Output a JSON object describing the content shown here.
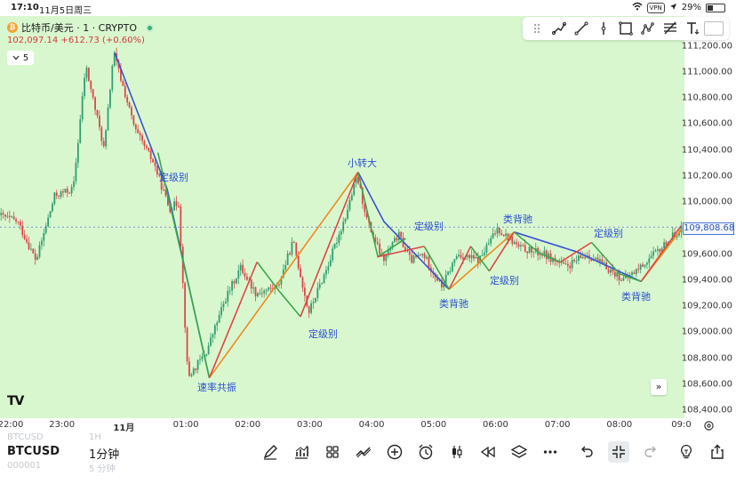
{
  "status_bar": {
    "time": "17:10",
    "date": "11月5日周三",
    "vpn": "VPN",
    "battery": "29%"
  },
  "symbol": {
    "coin_letter": "₿",
    "title": "比特币/美元 · 1 · CRYPTO",
    "price_line": "102,097.14 +612.73 (+0.60%)",
    "interval_count": "5"
  },
  "current_price": "109,808.68",
  "annotations": {
    "a1": "定级别",
    "a2": "速率共振",
    "a3": "定级别",
    "a4": "小转大",
    "a5": "定级别",
    "a6": "类背驰",
    "a7": "类背驰",
    "a8": "定级别",
    "a9": "定级别",
    "a10": "类背驰"
  },
  "time_axis": [
    "22:00",
    "23:00",
    "11月",
    "01:00",
    "02:00",
    "03:00",
    "04:00",
    "05:00",
    "06:00",
    "07:00",
    "08:00",
    "09:0"
  ],
  "tv_logo": "TV",
  "bottom": {
    "ghost_symbol": "BTCUSD",
    "ghost_interval": "1H",
    "ghost_code": "000001",
    "ghost_interval2": "5 分钟",
    "symbol": "BTCUSD",
    "interval": "1分钟"
  },
  "colors": {
    "chart_bg": "#d9f7cf",
    "up": "#2f9e6e",
    "down": "#e0454a",
    "blue_line": "#3a54cf",
    "green_line": "#3aa84a",
    "red_line": "#e04545",
    "orange_line": "#f08a1c"
  },
  "chart_data": {
    "type": "candlestick",
    "title": "比特币/美元 · 1 · CRYPTO",
    "xlabel": "",
    "ylabel": "",
    "x_ticks": [
      "22:00",
      "23:00",
      "11月",
      "01:00",
      "02:00",
      "03:00",
      "04:00",
      "05:00",
      "06:00",
      "07:00",
      "08:00",
      "09:0"
    ],
    "y_ticks": [
      {
        "value": 111200,
        "label": "111,200.00"
      },
      {
        "value": 111000,
        "label": "111,000.00"
      },
      {
        "value": 110800,
        "label": "110,800.00"
      },
      {
        "value": 110600,
        "label": "110,600.00"
      },
      {
        "value": 110400,
        "label": "110,400.00"
      },
      {
        "value": 110200,
        "label": "110,200.00"
      },
      {
        "value": 110000,
        "label": "110,000.00"
      },
      {
        "value": 109800,
        "label": "109,800.00"
      },
      {
        "value": 109600,
        "label": "109,600.00"
      },
      {
        "value": 109400,
        "label": "109,400.00"
      },
      {
        "value": 109200,
        "label": "109,200.00"
      },
      {
        "value": 109000,
        "label": "109,000.00"
      },
      {
        "value": 108800,
        "label": "108,800.00"
      },
      {
        "value": 108600,
        "label": "108,600.00"
      },
      {
        "value": 108400,
        "label": "108,400.00"
      }
    ],
    "ylim": [
      108340,
      111430
    ],
    "time_range_hours": [
      -2.0,
      9.05
    ],
    "price_path": [
      [
        -2.0,
        109900
      ],
      [
        -1.7,
        109850
      ],
      [
        -1.4,
        109550
      ],
      [
        -1.1,
        110050
      ],
      [
        -0.8,
        110100
      ],
      [
        -0.6,
        111050
      ],
      [
        -0.3,
        110400
      ],
      [
        -0.15,
        111150
      ],
      [
        0.2,
        110550
      ],
      [
        0.5,
        110300
      ],
      [
        0.75,
        109950
      ],
      [
        0.9,
        110000
      ],
      [
        1.05,
        108650
      ],
      [
        1.35,
        108850
      ],
      [
        1.65,
        109250
      ],
      [
        1.9,
        109500
      ],
      [
        2.15,
        109300
      ],
      [
        2.5,
        109350
      ],
      [
        2.75,
        109700
      ],
      [
        3.0,
        109150
      ],
      [
        3.3,
        109500
      ],
      [
        3.6,
        109900
      ],
      [
        3.78,
        110200
      ],
      [
        3.95,
        109850
      ],
      [
        4.2,
        109550
      ],
      [
        4.45,
        109750
      ],
      [
        4.65,
        109550
      ],
      [
        4.85,
        109600
      ],
      [
        5.15,
        109350
      ],
      [
        5.4,
        109600
      ],
      [
        5.75,
        109550
      ],
      [
        6.05,
        109800
      ],
      [
        6.4,
        109650
      ],
      [
        6.8,
        109600
      ],
      [
        7.15,
        109500
      ],
      [
        7.5,
        109600
      ],
      [
        7.8,
        109500
      ],
      [
        8.1,
        109400
      ],
      [
        8.35,
        109500
      ],
      [
        8.7,
        109650
      ],
      [
        9.0,
        109800
      ]
    ],
    "overlay_lines": [
      {
        "color": "blue",
        "points": [
          [
            -0.15,
            111150
          ],
          [
            0.7,
            110100
          ],
          [
            1.38,
            108650
          ]
        ]
      },
      {
        "color": "blue",
        "points": [
          [
            3.78,
            110230
          ],
          [
            4.2,
            109850
          ],
          [
            5.25,
            109330
          ]
        ]
      },
      {
        "color": "blue",
        "points": [
          [
            6.3,
            109770
          ],
          [
            7.3,
            109620
          ],
          [
            8.35,
            109390
          ]
        ]
      },
      {
        "color": "orange",
        "points": [
          [
            1.38,
            108650
          ],
          [
            3.78,
            110230
          ]
        ]
      },
      {
        "color": "orange",
        "points": [
          [
            5.25,
            109330
          ],
          [
            6.3,
            109770
          ]
        ]
      },
      {
        "color": "orange",
        "points": [
          [
            8.35,
            109390
          ],
          [
            9.0,
            109790
          ]
        ]
      },
      {
        "color": "green",
        "points": [
          [
            0.55,
            110380
          ],
          [
            1.05,
            109350
          ],
          [
            1.38,
            108650
          ]
        ]
      },
      {
        "color": "green",
        "points": [
          [
            2.15,
            109540
          ],
          [
            2.5,
            109320
          ],
          [
            2.85,
            109120
          ]
        ]
      },
      {
        "color": "green",
        "points": [
          [
            3.78,
            110230
          ],
          [
            4.1,
            109580
          ],
          [
            4.55,
            109720
          ]
        ]
      },
      {
        "color": "green",
        "points": [
          [
            4.85,
            109660
          ],
          [
            5.25,
            109330
          ]
        ]
      },
      {
        "color": "green",
        "points": [
          [
            5.6,
            109660
          ],
          [
            5.9,
            109470
          ]
        ]
      },
      {
        "color": "green",
        "points": [
          [
            6.3,
            109770
          ],
          [
            6.7,
            109610
          ],
          [
            7.05,
            109540
          ]
        ]
      },
      {
        "color": "green",
        "points": [
          [
            7.55,
            109690
          ],
          [
            8.0,
            109450
          ],
          [
            8.35,
            109390
          ]
        ]
      },
      {
        "color": "red",
        "points": [
          [
            1.38,
            108650
          ],
          [
            2.15,
            109540
          ]
        ]
      },
      {
        "color": "red",
        "points": [
          [
            2.85,
            109120
          ],
          [
            3.78,
            110230
          ]
        ]
      },
      {
        "color": "red",
        "points": [
          [
            4.1,
            109580
          ],
          [
            4.85,
            109660
          ]
        ]
      },
      {
        "color": "red",
        "points": [
          [
            5.25,
            109330
          ],
          [
            5.6,
            109660
          ]
        ]
      },
      {
        "color": "red",
        "points": [
          [
            5.9,
            109470
          ],
          [
            6.3,
            109770
          ]
        ]
      },
      {
        "color": "red",
        "points": [
          [
            7.05,
            109540
          ],
          [
            7.55,
            109690
          ]
        ]
      },
      {
        "color": "red",
        "points": [
          [
            8.35,
            109390
          ],
          [
            9.0,
            109820
          ]
        ]
      }
    ]
  }
}
